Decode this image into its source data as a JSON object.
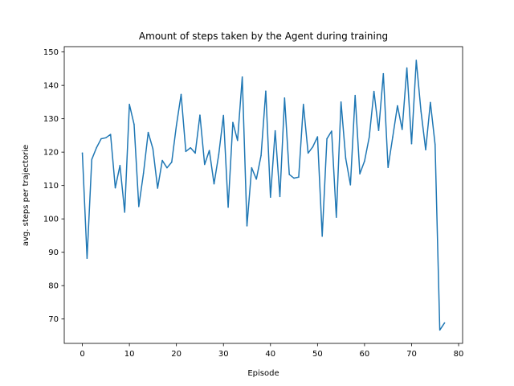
{
  "chart_data": {
    "type": "line",
    "title": "Amount of steps taken by the Agent during training",
    "xlabel": "Episode",
    "ylabel": "avg. steps per trajectorie",
    "xlim": [
      -3.85,
      80.85
    ],
    "ylim": [
      62.7,
      151.6
    ],
    "xticks": [
      0,
      10,
      20,
      30,
      40,
      50,
      60,
      70,
      80
    ],
    "yticks": [
      70,
      80,
      90,
      100,
      110,
      120,
      130,
      140,
      150
    ],
    "grid": false,
    "legend": "none",
    "series": [
      {
        "color": "#1f77b4",
        "x": [
          0,
          1,
          2,
          3,
          4,
          5,
          6,
          7,
          8,
          9,
          10,
          11,
          12,
          13,
          14,
          15,
          16,
          17,
          18,
          19,
          20,
          21,
          22,
          23,
          24,
          25,
          26,
          27,
          28,
          29,
          30,
          31,
          32,
          33,
          34,
          35,
          36,
          37,
          38,
          39,
          40,
          41,
          42,
          43,
          44,
          45,
          46,
          47,
          48,
          49,
          50,
          51,
          52,
          53,
          54,
          55,
          56,
          57,
          58,
          59,
          60,
          61,
          62,
          63,
          64,
          65,
          66,
          67,
          68,
          69,
          70,
          71,
          72,
          73,
          74,
          75,
          76,
          77
        ],
        "values": [
          119.7,
          88.2,
          117.8,
          121.3,
          124.0,
          124.3,
          125.3,
          109.3,
          116.0,
          102.0,
          134.3,
          128.3,
          103.7,
          113.7,
          125.9,
          121.0,
          109.2,
          117.5,
          115.3,
          117.0,
          128.0,
          137.3,
          120.2,
          121.3,
          119.7,
          131.1,
          116.3,
          120.5,
          110.5,
          119.3,
          131.0,
          103.5,
          128.9,
          123.5,
          142.5,
          97.9,
          115.3,
          111.9,
          119.0,
          138.3,
          106.5,
          126.4,
          106.7,
          136.2,
          113.3,
          112.2,
          112.5,
          134.3,
          119.7,
          121.6,
          124.6,
          94.8,
          124.0,
          126.3,
          100.5,
          135.0,
          118.1,
          110.2,
          137.0,
          113.5,
          117.3,
          124.5,
          138.2,
          126.5,
          143.5,
          115.4,
          124.6,
          133.9,
          126.8,
          145.2,
          122.5,
          147.5,
          132.3,
          120.7,
          134.9,
          122.3,
          66.7,
          68.8
        ]
      }
    ]
  }
}
